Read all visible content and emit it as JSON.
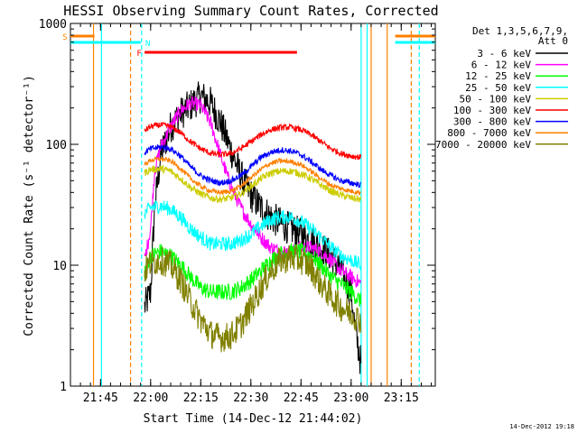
{
  "chart_data": {
    "type": "line",
    "title": "HESSI Observing Summary Count Rates, Corrected",
    "xlabel": "Start Time (14-Dec-12 21:44:02)",
    "ylabel": "Corrected Count Rate (s⁻¹ detector⁻¹)",
    "x_range_minutes": [
      21.6,
      23.42
    ],
    "x_ticks": [
      {
        "t": 21.75,
        "label": "21:45"
      },
      {
        "t": 22.0,
        "label": "22:00"
      },
      {
        "t": 22.25,
        "label": "22:15"
      },
      {
        "t": 22.5,
        "label": "22:30"
      },
      {
        "t": 22.75,
        "label": "22:45"
      },
      {
        "t": 23.0,
        "label": "23:00"
      },
      {
        "t": 23.25,
        "label": "23:15"
      }
    ],
    "y_scale": "log",
    "ylim": [
      1,
      1000
    ],
    "y_ticks": [
      {
        "v": 1,
        "label": "1"
      },
      {
        "v": 10,
        "label": "10"
      },
      {
        "v": 100,
        "label": "100"
      },
      {
        "v": 1000,
        "label": "1000"
      }
    ],
    "legend": {
      "placement": "right",
      "header_line1": "Det 1,3,5,6,7,9,",
      "header_line2": "Att 0"
    },
    "series": [
      {
        "name": "3 - 6 keV",
        "color": "#000000",
        "noise": 0.14,
        "points": [
          [
            21.97,
            4.5
          ],
          [
            22.0,
            6
          ],
          [
            22.02,
            30
          ],
          [
            22.05,
            80
          ],
          [
            22.1,
            140
          ],
          [
            22.15,
            180
          ],
          [
            22.2,
            210
          ],
          [
            22.25,
            250
          ],
          [
            22.3,
            220
          ],
          [
            22.35,
            150
          ],
          [
            22.4,
            90
          ],
          [
            22.45,
            55
          ],
          [
            22.5,
            38
          ],
          [
            22.55,
            30
          ],
          [
            22.6,
            25
          ],
          [
            22.65,
            22
          ],
          [
            22.7,
            20
          ],
          [
            22.75,
            18
          ],
          [
            22.8,
            16
          ],
          [
            22.85,
            14
          ],
          [
            22.9,
            12
          ],
          [
            22.95,
            9
          ],
          [
            23.0,
            6
          ],
          [
            23.02,
            3
          ],
          [
            23.05,
            1.5
          ]
        ]
      },
      {
        "name": "6 - 12 keV",
        "color": "#ff00ff",
        "noise": 0.06,
        "points": [
          [
            21.97,
            11
          ],
          [
            22.0,
            20
          ],
          [
            22.02,
            60
          ],
          [
            22.05,
            95
          ],
          [
            22.1,
            140
          ],
          [
            22.15,
            190
          ],
          [
            22.2,
            220
          ],
          [
            22.25,
            210
          ],
          [
            22.3,
            150
          ],
          [
            22.35,
            80
          ],
          [
            22.4,
            45
          ],
          [
            22.45,
            30
          ],
          [
            22.5,
            22
          ],
          [
            22.55,
            17
          ],
          [
            22.6,
            14
          ],
          [
            22.65,
            13
          ],
          [
            22.7,
            13
          ],
          [
            22.75,
            14
          ],
          [
            22.8,
            14
          ],
          [
            22.85,
            13
          ],
          [
            22.9,
            11
          ],
          [
            22.95,
            9
          ],
          [
            23.0,
            8
          ],
          [
            23.05,
            7
          ]
        ]
      },
      {
        "name": "12 - 25 keV",
        "color": "#00ff00",
        "noise": 0.07,
        "points": [
          [
            21.97,
            9
          ],
          [
            22.0,
            12
          ],
          [
            22.05,
            13
          ],
          [
            22.1,
            12
          ],
          [
            22.15,
            10
          ],
          [
            22.2,
            8
          ],
          [
            22.25,
            6.5
          ],
          [
            22.3,
            6
          ],
          [
            22.35,
            6
          ],
          [
            22.4,
            6
          ],
          [
            22.45,
            6.5
          ],
          [
            22.5,
            7.5
          ],
          [
            22.55,
            9
          ],
          [
            22.6,
            11
          ],
          [
            22.65,
            12.5
          ],
          [
            22.7,
            13
          ],
          [
            22.75,
            13
          ],
          [
            22.8,
            12
          ],
          [
            22.85,
            10
          ],
          [
            22.9,
            8
          ],
          [
            22.95,
            7
          ],
          [
            23.0,
            6
          ],
          [
            23.05,
            5
          ]
        ]
      },
      {
        "name": "25 - 50 keV",
        "color": "#00ffff",
        "noise": 0.06,
        "points": [
          [
            21.97,
            27
          ],
          [
            22.0,
            30
          ],
          [
            22.05,
            31
          ],
          [
            22.1,
            29
          ],
          [
            22.15,
            25
          ],
          [
            22.2,
            20
          ],
          [
            22.25,
            17
          ],
          [
            22.3,
            15
          ],
          [
            22.35,
            15
          ],
          [
            22.4,
            15
          ],
          [
            22.45,
            16
          ],
          [
            22.5,
            18
          ],
          [
            22.55,
            21
          ],
          [
            22.6,
            24
          ],
          [
            22.65,
            25
          ],
          [
            22.7,
            25
          ],
          [
            22.75,
            23
          ],
          [
            22.8,
            20
          ],
          [
            22.85,
            17
          ],
          [
            22.9,
            14
          ],
          [
            22.95,
            12
          ],
          [
            23.0,
            11
          ],
          [
            23.05,
            10
          ]
        ]
      },
      {
        "name": "50 - 100 keV",
        "color": "#cccc00",
        "noise": 0.03,
        "points": [
          [
            21.97,
            58
          ],
          [
            22.0,
            62
          ],
          [
            22.05,
            63
          ],
          [
            22.1,
            60
          ],
          [
            22.15,
            52
          ],
          [
            22.2,
            44
          ],
          [
            22.25,
            39
          ],
          [
            22.3,
            36
          ],
          [
            22.35,
            35
          ],
          [
            22.4,
            36
          ],
          [
            22.45,
            39
          ],
          [
            22.5,
            45
          ],
          [
            22.55,
            52
          ],
          [
            22.6,
            58
          ],
          [
            22.65,
            60
          ],
          [
            22.7,
            60
          ],
          [
            22.75,
            57
          ],
          [
            22.8,
            52
          ],
          [
            22.85,
            46
          ],
          [
            22.9,
            41
          ],
          [
            22.95,
            38
          ],
          [
            23.0,
            36
          ],
          [
            23.05,
            35
          ]
        ]
      },
      {
        "name": "100 - 300 keV",
        "color": "#ff0000",
        "noise": 0.025,
        "points": [
          [
            21.97,
            130
          ],
          [
            22.0,
            140
          ],
          [
            22.05,
            145
          ],
          [
            22.1,
            140
          ],
          [
            22.15,
            125
          ],
          [
            22.2,
            105
          ],
          [
            22.25,
            92
          ],
          [
            22.3,
            84
          ],
          [
            22.35,
            82
          ],
          [
            22.4,
            84
          ],
          [
            22.45,
            92
          ],
          [
            22.5,
            105
          ],
          [
            22.55,
            120
          ],
          [
            22.6,
            132
          ],
          [
            22.65,
            138
          ],
          [
            22.7,
            138
          ],
          [
            22.75,
            132
          ],
          [
            22.8,
            120
          ],
          [
            22.85,
            105
          ],
          [
            22.9,
            92
          ],
          [
            22.95,
            84
          ],
          [
            23.0,
            80
          ],
          [
            23.05,
            78
          ]
        ]
      },
      {
        "name": "300 - 800 keV",
        "color": "#0000ff",
        "noise": 0.025,
        "points": [
          [
            21.97,
            85
          ],
          [
            22.0,
            92
          ],
          [
            22.05,
            95
          ],
          [
            22.1,
            92
          ],
          [
            22.15,
            80
          ],
          [
            22.2,
            65
          ],
          [
            22.25,
            55
          ],
          [
            22.3,
            50
          ],
          [
            22.35,
            48
          ],
          [
            22.4,
            50
          ],
          [
            22.45,
            55
          ],
          [
            22.5,
            65
          ],
          [
            22.55,
            78
          ],
          [
            22.6,
            86
          ],
          [
            22.65,
            90
          ],
          [
            22.7,
            88
          ],
          [
            22.75,
            82
          ],
          [
            22.8,
            72
          ],
          [
            22.85,
            62
          ],
          [
            22.9,
            55
          ],
          [
            22.95,
            50
          ],
          [
            23.0,
            48
          ],
          [
            23.05,
            46
          ]
        ]
      },
      {
        "name": "800 - 7000 keV",
        "color": "#ff8000",
        "noise": 0.02,
        "points": [
          [
            21.97,
            68
          ],
          [
            22.0,
            74
          ],
          [
            22.05,
            76
          ],
          [
            22.1,
            73
          ],
          [
            22.15,
            63
          ],
          [
            22.2,
            52
          ],
          [
            22.25,
            45
          ],
          [
            22.3,
            41
          ],
          [
            22.35,
            40
          ],
          [
            22.4,
            41
          ],
          [
            22.45,
            45
          ],
          [
            22.5,
            53
          ],
          [
            22.55,
            62
          ],
          [
            22.6,
            70
          ],
          [
            22.65,
            73
          ],
          [
            22.7,
            72
          ],
          [
            22.75,
            68
          ],
          [
            22.8,
            60
          ],
          [
            22.85,
            52
          ],
          [
            22.9,
            46
          ],
          [
            22.95,
            43
          ],
          [
            23.0,
            41
          ],
          [
            23.05,
            40
          ]
        ]
      },
      {
        "name": "7000 - 20000 keV",
        "color": "#808000",
        "noise": 0.12,
        "points": [
          [
            21.97,
            9
          ],
          [
            22.0,
            10.5
          ],
          [
            22.05,
            11
          ],
          [
            22.1,
            10
          ],
          [
            22.15,
            7.5
          ],
          [
            22.2,
            5
          ],
          [
            22.25,
            3.5
          ],
          [
            22.3,
            2.7
          ],
          [
            22.35,
            2.5
          ],
          [
            22.4,
            2.6
          ],
          [
            22.45,
            3.2
          ],
          [
            22.5,
            4.5
          ],
          [
            22.55,
            6.5
          ],
          [
            22.6,
            9
          ],
          [
            22.65,
            11
          ],
          [
            22.7,
            11.5
          ],
          [
            22.75,
            11
          ],
          [
            22.8,
            9.5
          ],
          [
            22.85,
            7
          ],
          [
            22.9,
            5.5
          ],
          [
            22.95,
            4.5
          ],
          [
            23.0,
            4
          ],
          [
            23.05,
            3.5
          ]
        ]
      }
    ],
    "flags": [
      {
        "label": "S",
        "color": "#ff8000",
        "x": [
          21.6,
          21.72
        ]
      },
      {
        "label": "N",
        "color": "#00ffff",
        "x": [
          21.6,
          21.95
        ]
      },
      {
        "label": "F",
        "color": "#ff0000",
        "x": [
          21.97,
          22.73
        ]
      }
    ],
    "flags_right": [
      {
        "label": "",
        "color": "#ff8000",
        "x": [
          23.22,
          23.42
        ]
      },
      {
        "label": "",
        "color": "#00ffff",
        "x": [
          23.22,
          23.42
        ]
      }
    ],
    "vlines": [
      {
        "t": 21.715,
        "color": "#ff8000",
        "dashed": false
      },
      {
        "t": 21.755,
        "color": "#00ffff",
        "dashed": false
      },
      {
        "t": 21.9,
        "color": "#ff8000",
        "dashed": true
      },
      {
        "t": 21.955,
        "color": "#00ffff",
        "dashed": true
      },
      {
        "t": 23.05,
        "color": "#00ffff",
        "dashed": false
      },
      {
        "t": 23.08,
        "color": "#00ffff",
        "dashed": false
      },
      {
        "t": 23.1,
        "color": "#ff8000",
        "dashed": false
      },
      {
        "t": 23.18,
        "color": "#ff8000",
        "dashed": false
      },
      {
        "t": 23.3,
        "color": "#ff8000",
        "dashed": true
      },
      {
        "t": 23.34,
        "color": "#00ffff",
        "dashed": true
      }
    ]
  },
  "footer": {
    "timestamp": "14-Dec-2012 19:18"
  }
}
